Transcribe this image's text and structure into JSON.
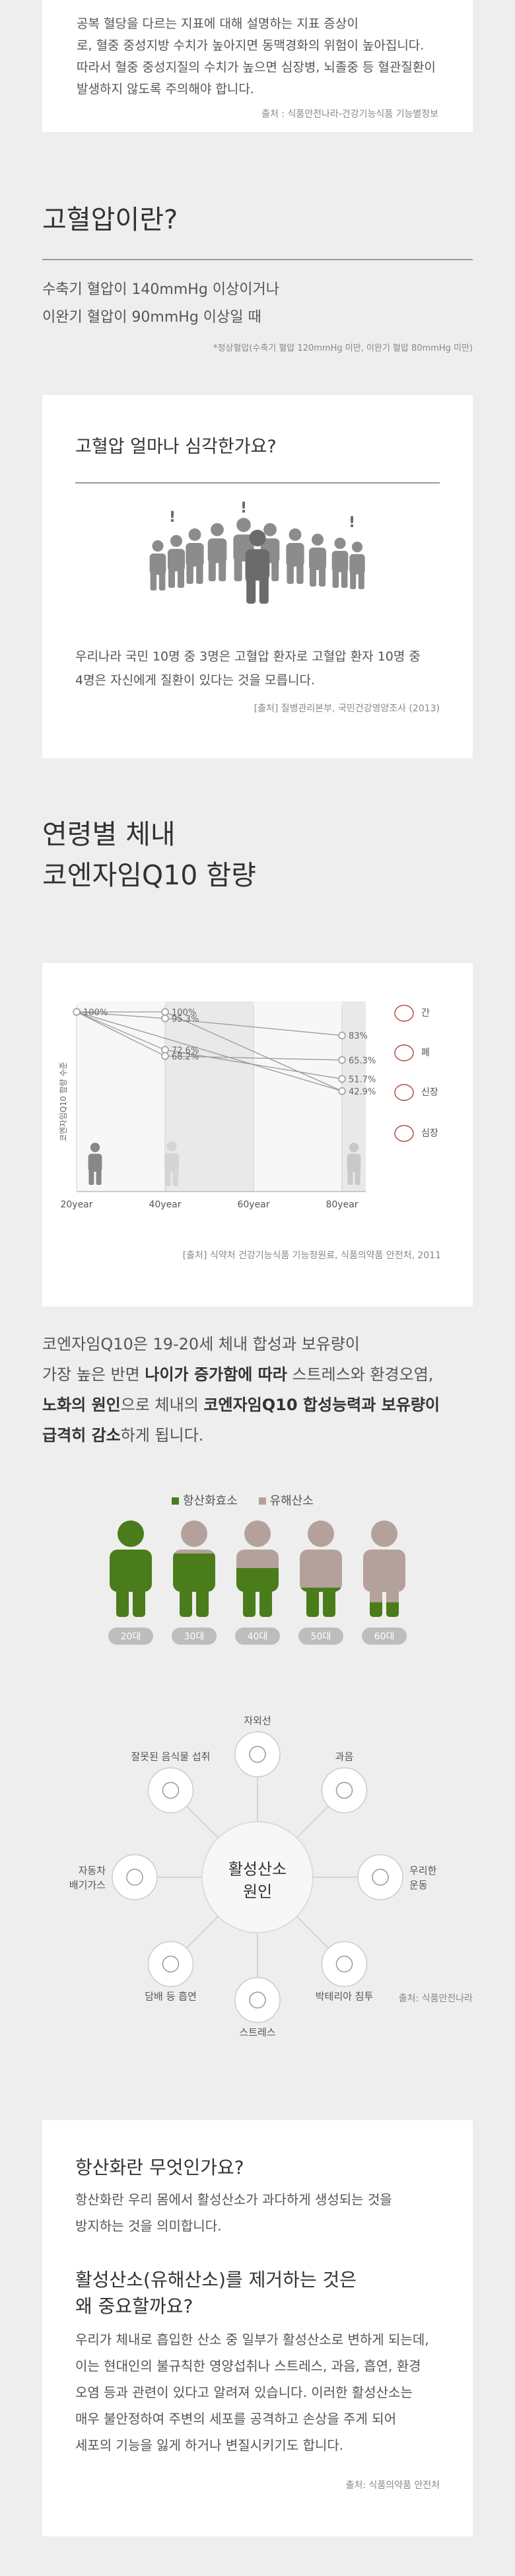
{
  "top": {
    "body_lines": [
      "공복 혈당을 다르는 지표에 대해 설명하는 지표 증상이",
      "로, 혈중 중성지방 수치가 높아지면 동맥경화의 위험이 높아집니다.",
      "따라서 혈중 중성지질의 수치가 높으면 심장병, 뇌졸중 등 혈관질환이",
      "발생하지 않도록 주의해야 합니다."
    ],
    "source": "출처 : 식품안전나라-건강기능식품 기능별정보"
  },
  "hypertension": {
    "title": "고혈압이란?",
    "line1": "수축기 혈압이 140mmHg 이상이거나",
    "line2": "이완기 혈압이 90mmHg 이상일 때",
    "note": "*정상혈압(수축기 혈압 120mmHg 미만, 이완기 혈압 80mmHg 미만)"
  },
  "severity": {
    "title": "고혈압 얼마나 심각한가요?",
    "body_lines": [
      "우리나라 국민 10명 중 3명은 고혈압 환자로 고혈압 환자 10명 중",
      "4명은 자신에게 질환이 있다는 것을 모릅니다."
    ],
    "source": "[출처] 질병관리본부, 국민건강영양조사 (2013)",
    "mark": "!",
    "colors": {
      "person": "#8c8c8c",
      "highlight": "#6b6b6b"
    }
  },
  "coq10": {
    "title_line1": "연령별 체내",
    "title_line2": "코엔자임Q10 함량",
    "source": "[출처] 식약처 건강기능식품 기능정원료, 식품의약품 안전처, 2011",
    "desc": {
      "l1": "코엔자임Q10은 19-20세 체내 합성과 보유량이",
      "l2a": "가장 높은 반면 ",
      "l2b": "나이가 증가함에 따라",
      "l2c": " 스트레스와 환경오염,",
      "l3a": "노화의 원인",
      "l3b": "으로 체내의 ",
      "l3c": "코엔자임Q10 합성능력과 보유량이",
      "l4a": "급격히 감소",
      "l4b": "하게 됩니다."
    }
  },
  "chart_data": {
    "type": "line",
    "ylabel": "코엔자임Q10 함량 수준",
    "x": [
      "20year",
      "40year",
      "60year",
      "80year"
    ],
    "series": [
      {
        "name": "간",
        "values": [
          100,
          95.3,
          null,
          83
        ]
      },
      {
        "name": "폐",
        "values": [
          100,
          72.6,
          null,
          51.7
        ]
      },
      {
        "name": "신장",
        "values": [
          100,
          68.2,
          null,
          65.3
        ]
      },
      {
        "name": "심장",
        "values": [
          100,
          100,
          null,
          42.9
        ]
      }
    ],
    "labels": {
      "20year": [
        "100%"
      ],
      "40year": [
        "100%",
        "95.3%",
        "72.6%",
        "68.2%"
      ],
      "80year": [
        "83%",
        "65.3%",
        "51.7%",
        "42.9%"
      ]
    },
    "colors": {
      "organ": "#b84a4a",
      "lines": "#999999",
      "band": "#e9e9e9"
    }
  },
  "age_legend": {
    "antioxidant": "항산화효소",
    "harmful": "유해산소",
    "colors": {
      "antioxidant": "#4a7c1b",
      "harmful": "#b5a19b",
      "badge": "#bdbdbd"
    },
    "ages": [
      "20대",
      "30대",
      "40대",
      "50대",
      "60대"
    ],
    "antioxidant_share": [
      1.0,
      0.65,
      0.5,
      0.3,
      0.15
    ]
  },
  "causes": {
    "center_line1": "활성산소",
    "center_line2": "원인",
    "items": [
      "자외선",
      "과음",
      "우리한\n운동",
      "박테리아 침투",
      "스트레스",
      "담배 등 흡연",
      "자동차\n배기가스",
      "잘못된 음식물 섭취"
    ],
    "source": "출처: 식품안전나라"
  },
  "oxidation": {
    "q1": "항산화란 무엇인가요?",
    "a1_lines": [
      "항산화란 우리 몸에서 활성산소가 과다하게 생성되는 것을",
      "방지하는 것을 의미합니다."
    ],
    "q2_lines": [
      "활성산소(유해산소)를 제거하는 것은",
      "왜 중요할까요?"
    ],
    "a2_lines": [
      "우리가 체내로 흡입한 산소 중 일부가 활성산소로 변하게 되는데,",
      "이는 현대인의 불규칙한 영양섭취나 스트레스, 과음, 흡연, 환경",
      "오염 등과 관련이 있다고 알려져 있습니다. 이러한 활성산소는",
      "매우 불안정하여 주변의 세포를 공격하고 손상을 주게 되어",
      "세포의 기능을 잃게 하거나 변질시키기도 합니다."
    ],
    "source": "출처: 식품의약품 안전처"
  }
}
